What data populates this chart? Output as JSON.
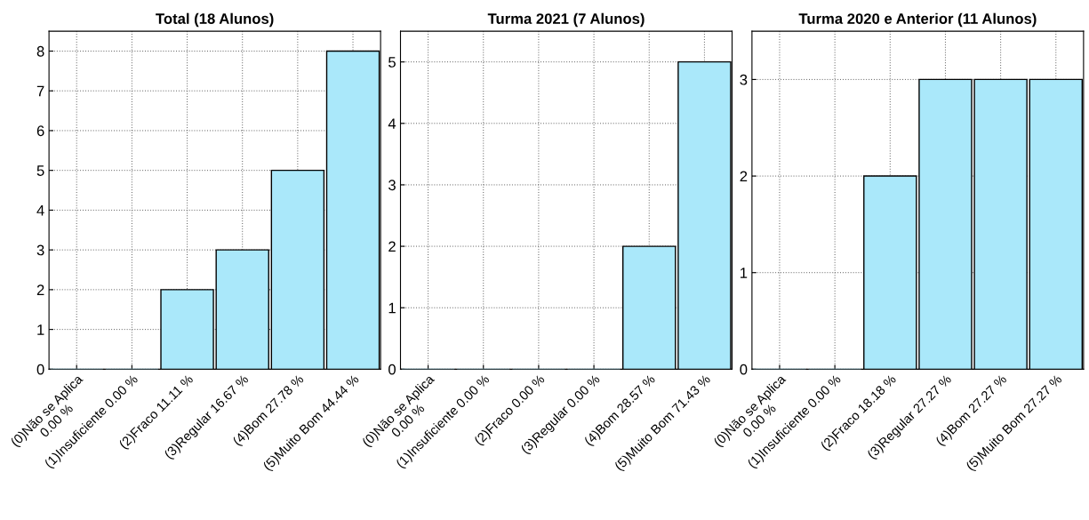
{
  "chart_data": [
    {
      "type": "bar",
      "title": "Total (18 Alunos)",
      "categories": [
        "(0)Não se Aplica\n0.00 %",
        "(1)Insuficiente 0.00 %",
        "(2)Fraco 11.11 %",
        "(3)Regular 16.67 %",
        "(4)Bom 27.78 %",
        "(5)Muito Bom 44.44 %"
      ],
      "values": [
        0,
        0,
        2,
        3,
        5,
        8
      ],
      "color": "#aae8fa",
      "ylim": [
        0,
        8.5
      ],
      "yticks": [
        0,
        1,
        2,
        3,
        4,
        5,
        6,
        7,
        8
      ],
      "grid": true
    },
    {
      "type": "bar",
      "title": "Turma 2021 (7 Alunos)",
      "categories": [
        "(0)Não se Aplica\n0.00 %",
        "(1)Insuficiente 0.00 %",
        "(2)Fraco 0.00 %",
        "(3)Regular 0.00 %",
        "(4)Bom 28.57 %",
        "(5)Muito Bom 71.43 %"
      ],
      "values": [
        0,
        0,
        0,
        0,
        2,
        5
      ],
      "color": "#aae8fa",
      "ylim": [
        0,
        5.5
      ],
      "yticks": [
        0,
        1,
        2,
        3,
        4,
        5
      ],
      "grid": true
    },
    {
      "type": "bar",
      "title": "Turma 2020 e Anterior (11 Alunos)",
      "categories": [
        "(0)Não se Aplica\n0.00 %",
        "(1)Insuficiente 0.00 %",
        "(2)Fraco 18.18 %",
        "(3)Regular 27.27 %",
        "(4)Bom 27.27 %",
        "(5)Muito Bom 27.27 %"
      ],
      "values": [
        0,
        0,
        2,
        3,
        3,
        3
      ],
      "color": "#aae8fa",
      "ylim": [
        0,
        3.5
      ],
      "yticks": [
        0,
        1,
        2,
        3
      ],
      "grid": true
    }
  ]
}
